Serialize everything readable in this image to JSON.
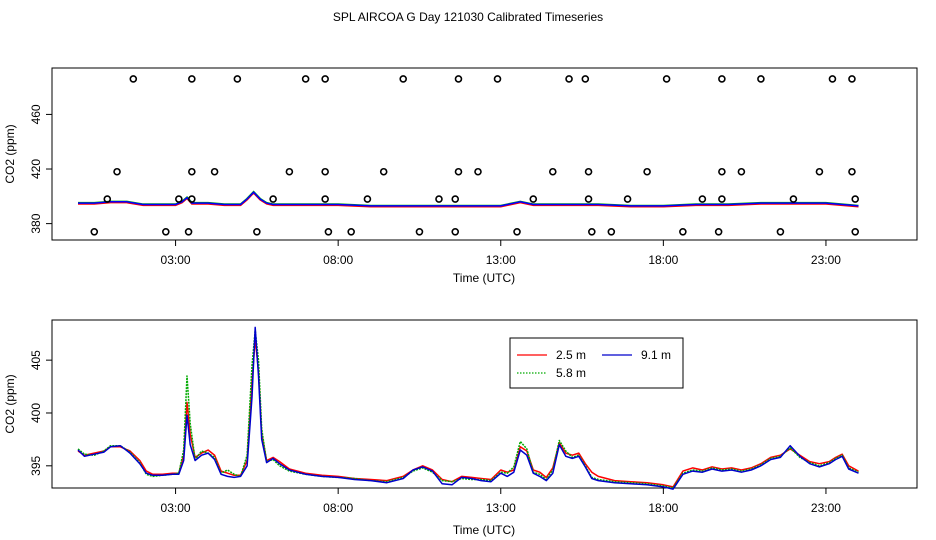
{
  "figure_title": "SPL AIRCOA G  Day 121030  Calibrated Timeseries",
  "chart_data": [
    {
      "type": "scatter",
      "name": "top-panel",
      "xlabel": "Time (UTC)",
      "ylabel": "CO2 (ppm)",
      "xlim": [
        -0.8,
        25.8
      ],
      "ylim": [
        368,
        494
      ],
      "x_ticks": [
        3,
        8,
        13,
        18,
        23
      ],
      "x_tick_labels": [
        "03:00",
        "08:00",
        "13:00",
        "18:00",
        "23:00"
      ],
      "y_ticks": [
        380,
        420,
        460
      ],
      "y_tick_labels": [
        "380",
        "420",
        "460"
      ],
      "grid": false,
      "series": [
        {
          "name": "line",
          "color": "#0000ff",
          "x": [
            0,
            0.5,
            1,
            1.5,
            2,
            2.5,
            3,
            3.2,
            3.35,
            3.5,
            3.7,
            4,
            4.5,
            5,
            5.2,
            5.4,
            5.6,
            5.8,
            6,
            7,
            8,
            9,
            10,
            11,
            12,
            13,
            13.6,
            14,
            15,
            16,
            17,
            18,
            19,
            20,
            21,
            22,
            23,
            24
          ],
          "values": [
            395,
            395,
            396,
            396,
            394,
            394,
            394,
            396,
            399,
            395,
            395,
            395,
            394,
            394,
            398,
            403,
            398,
            395,
            394,
            394,
            394,
            393,
            393,
            393,
            393,
            393,
            396,
            394,
            394,
            394,
            393,
            393,
            394,
            394,
            395,
            395,
            395,
            393
          ]
        },
        {
          "name": "flags-high",
          "marker": "o",
          "x": [
            1.7,
            3.5,
            4.9,
            7.0,
            7.6,
            10.0,
            11.7,
            12.9,
            15.1,
            15.6,
            18.1,
            19.8,
            21.0,
            23.2,
            23.8
          ],
          "values": [
            486,
            486,
            486,
            486,
            486,
            486,
            486,
            486,
            486,
            486,
            486,
            486,
            486,
            486,
            486
          ]
        },
        {
          "name": "flags-420",
          "marker": "o",
          "x": [
            1.2,
            3.5,
            4.2,
            6.5,
            7.6,
            9.4,
            11.7,
            12.3,
            14.6,
            15.7,
            17.5,
            19.8,
            20.4,
            22.8,
            23.8
          ],
          "values": [
            418,
            418,
            418,
            418,
            418,
            418,
            418,
            418,
            418,
            418,
            418,
            418,
            418,
            418,
            418
          ]
        },
        {
          "name": "flags-398",
          "marker": "o",
          "x": [
            0.9,
            3.1,
            3.5,
            6.0,
            7.6,
            8.9,
            11.1,
            11.6,
            14.0,
            15.7,
            16.9,
            19.2,
            19.8,
            22.0,
            23.9
          ],
          "values": [
            398,
            398,
            398,
            398,
            398,
            398,
            398,
            398,
            398,
            398,
            398,
            398,
            398,
            398,
            398
          ]
        },
        {
          "name": "flags-low",
          "marker": "o",
          "x": [
            0.5,
            2.7,
            3.4,
            5.5,
            7.7,
            8.4,
            10.5,
            11.6,
            13.5,
            15.8,
            16.4,
            18.6,
            19.7,
            21.6,
            23.9
          ],
          "values": [
            374,
            374,
            374,
            374,
            374,
            374,
            374,
            374,
            374,
            374,
            374,
            374,
            374,
            374,
            374
          ]
        }
      ]
    },
    {
      "type": "line",
      "name": "bottom-panel",
      "xlabel": "Time (UTC)",
      "ylabel": "CO2 (ppm)",
      "xlim": [
        -0.8,
        25.8
      ],
      "ylim": [
        392.9,
        408.8
      ],
      "x_ticks": [
        3,
        8,
        13,
        18,
        23
      ],
      "x_tick_labels": [
        "03:00",
        "08:00",
        "13:00",
        "18:00",
        "23:00"
      ],
      "y_ticks": [
        395,
        400,
        405
      ],
      "y_tick_labels": [
        "395",
        "400",
        "405"
      ],
      "grid": false,
      "legend": {
        "placement": "top-right",
        "entries": [
          {
            "label": "2.5 m",
            "color": "#ff0000",
            "dash": "solid"
          },
          {
            "label": "5.8 m",
            "color": "#00aa00",
            "dash": "dotted"
          },
          {
            "label": "9.1 m",
            "color": "#0000cc",
            "dash": "solid"
          }
        ]
      },
      "x": [
        0,
        0.2,
        0.5,
        0.8,
        1,
        1.3,
        1.6,
        1.9,
        2.1,
        2.3,
        2.6,
        2.9,
        3.1,
        3.25,
        3.35,
        3.45,
        3.6,
        3.8,
        4.0,
        4.2,
        4.4,
        4.6,
        4.8,
        5.0,
        5.2,
        5.35,
        5.45,
        5.55,
        5.65,
        5.8,
        6.0,
        6.2,
        6.5,
        7.0,
        7.5,
        8.0,
        8.5,
        9.0,
        9.5,
        10.0,
        10.3,
        10.6,
        10.9,
        11.2,
        11.5,
        11.8,
        12.1,
        12.4,
        12.7,
        13.0,
        13.2,
        13.4,
        13.6,
        13.8,
        14.0,
        14.2,
        14.4,
        14.6,
        14.8,
        15.0,
        15.2,
        15.4,
        15.6,
        15.8,
        16.0,
        16.5,
        17.0,
        17.5,
        18.0,
        18.3,
        18.6,
        18.9,
        19.2,
        19.5,
        19.8,
        20.1,
        20.4,
        20.7,
        21.0,
        21.3,
        21.6,
        21.9,
        22.2,
        22.5,
        22.8,
        23.1,
        23.3,
        23.5,
        23.7,
        24.0
      ],
      "series": [
        {
          "name": "2.5 m",
          "color": "#ff0000",
          "values": [
            396.4,
            396.0,
            396.2,
            396.4,
            396.8,
            396.8,
            396.4,
            395.5,
            394.5,
            394.2,
            394.2,
            394.3,
            394.3,
            396.0,
            401.0,
            398.0,
            395.8,
            396.2,
            396.5,
            396.0,
            394.5,
            394.3,
            394.1,
            394.1,
            395.5,
            403.0,
            407.0,
            404.0,
            398.0,
            395.5,
            395.8,
            395.4,
            394.7,
            394.3,
            394.1,
            394.0,
            393.8,
            393.7,
            393.6,
            394.0,
            394.6,
            395.0,
            394.6,
            393.7,
            393.5,
            394.0,
            393.9,
            393.8,
            393.7,
            394.6,
            394.4,
            394.6,
            396.8,
            396.4,
            394.6,
            394.4,
            393.9,
            394.8,
            397.2,
            396.2,
            396.0,
            396.2,
            395.2,
            394.4,
            394.0,
            393.6,
            393.5,
            393.4,
            393.2,
            393.0,
            394.5,
            394.8,
            394.6,
            394.9,
            394.7,
            394.8,
            394.6,
            394.8,
            395.2,
            395.8,
            396.0,
            396.6,
            396.0,
            395.4,
            395.2,
            395.4,
            395.8,
            396.1,
            395.0,
            394.5
          ]
        },
        {
          "name": "5.8 m",
          "color": "#00aa00",
          "values": [
            396.6,
            396.1,
            396.0,
            396.4,
            396.9,
            396.9,
            396.3,
            395.3,
            394.2,
            394.0,
            394.1,
            394.2,
            394.3,
            396.5,
            403.5,
            399.0,
            395.6,
            396.4,
            396.2,
            395.8,
            394.3,
            394.6,
            394.2,
            394.0,
            396.0,
            404.5,
            407.8,
            405.0,
            398.5,
            395.4,
            395.6,
            395.0,
            394.5,
            394.2,
            394.0,
            393.9,
            393.8,
            393.6,
            393.5,
            393.9,
            394.5,
            394.8,
            394.4,
            393.6,
            393.5,
            393.8,
            393.7,
            393.7,
            393.6,
            394.4,
            394.3,
            394.9,
            397.3,
            396.6,
            394.4,
            394.2,
            393.7,
            394.6,
            397.4,
            396.4,
            395.8,
            396.0,
            395.0,
            393.9,
            393.7,
            393.5,
            393.4,
            393.3,
            393.1,
            392.9,
            394.3,
            394.6,
            394.5,
            394.8,
            394.6,
            394.7,
            394.5,
            394.7,
            395.1,
            395.7,
            395.9,
            396.7,
            395.8,
            395.3,
            395.0,
            395.3,
            395.7,
            396.0,
            394.8,
            394.4
          ]
        },
        {
          "name": "9.1 m",
          "color": "#0000cc",
          "values": [
            396.5,
            395.9,
            396.1,
            396.3,
            396.8,
            396.9,
            396.2,
            395.2,
            394.3,
            394.1,
            394.1,
            394.2,
            394.2,
            395.5,
            399.8,
            397.0,
            395.5,
            396.0,
            396.2,
            395.6,
            394.2,
            394.0,
            393.9,
            394.0,
            395.0,
            401.5,
            408.1,
            403.5,
            397.5,
            395.3,
            395.7,
            395.2,
            394.6,
            394.2,
            394.0,
            393.9,
            393.7,
            393.6,
            393.4,
            393.8,
            394.6,
            394.9,
            394.5,
            393.3,
            393.2,
            393.9,
            393.8,
            393.6,
            393.5,
            394.3,
            394.0,
            394.4,
            396.5,
            396.0,
            394.3,
            394.0,
            393.6,
            394.3,
            397.0,
            395.9,
            395.7,
            395.9,
            394.9,
            393.8,
            393.6,
            393.4,
            393.3,
            393.2,
            393.0,
            392.8,
            394.2,
            394.5,
            394.4,
            394.7,
            394.5,
            394.6,
            394.4,
            394.6,
            395.0,
            395.6,
            395.8,
            396.9,
            395.9,
            395.2,
            394.9,
            395.2,
            395.6,
            395.9,
            394.7,
            394.3
          ]
        }
      ]
    }
  ]
}
